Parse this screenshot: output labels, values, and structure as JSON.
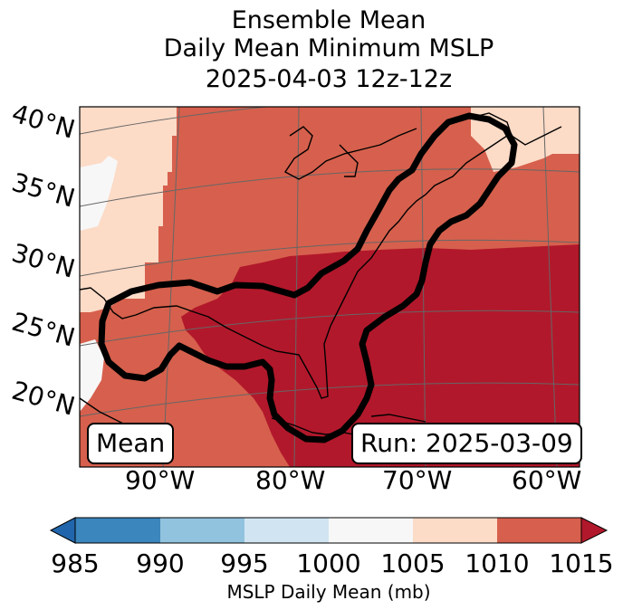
{
  "title_lines": [
    "Ensemble Mean",
    "Daily Mean Minimum MSLP",
    "2025-04-03 12z-12z"
  ],
  "lat_labels": [
    "40°N",
    "35°N",
    "30°N",
    "25°N",
    "20°N"
  ],
  "lon_labels": [
    "90°W",
    "80°W",
    "70°W",
    "60°W"
  ],
  "mean_box": "Mean",
  "run_box": "Run: 2025-03-09",
  "colorbar": {
    "label": "MSLP Daily Mean (mb)",
    "ticks": [
      "985",
      "990",
      "995",
      "1000",
      "1005",
      "1010",
      "1015"
    ],
    "colors": [
      "#3a86bd",
      "#91c3de",
      "#d0e5f1",
      "#f7f7f7",
      "#fcdbc7",
      "#d6604d",
      "#b2182b"
    ],
    "extend_low_color": "#2166ac",
    "extend_high_color": "#b2182b"
  },
  "map_colors": {
    "land_line": "#000000",
    "contour": "#000000",
    "grid": "#666666"
  }
}
